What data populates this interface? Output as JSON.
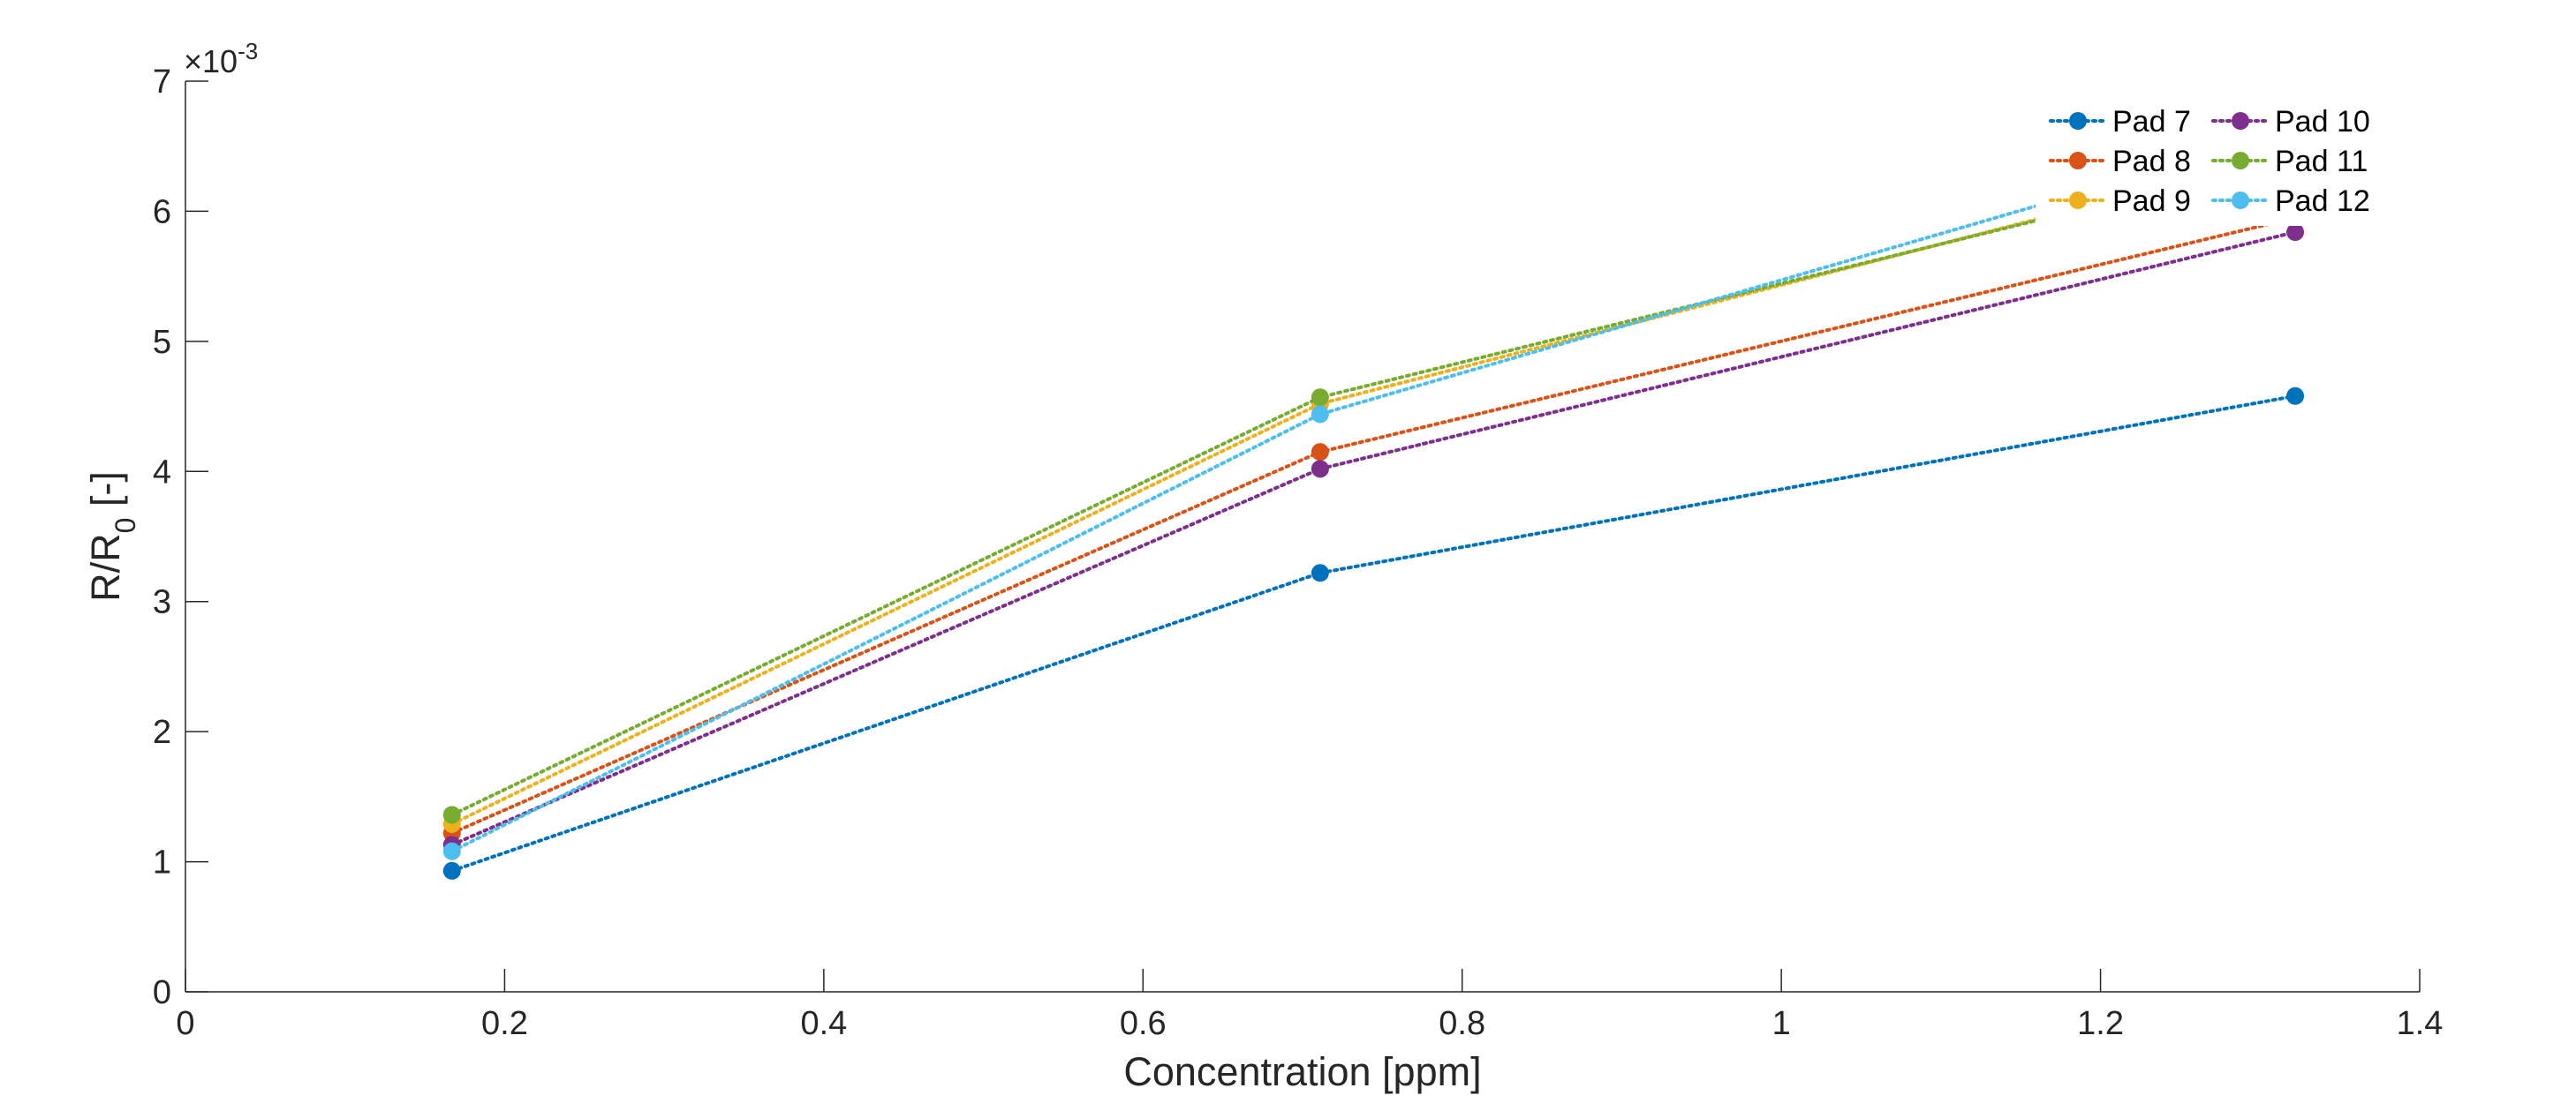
{
  "chart_data": {
    "type": "line",
    "xlabel": "Concentration [ppm]",
    "ylabel_main": "R/R",
    "ylabel_sub": "0",
    "ylabel_tail": " [-]",
    "y_exponent_prefix": "×10",
    "y_exponent_power": "-3",
    "xlim": [
      0,
      1.4
    ],
    "ylim": [
      0,
      7
    ],
    "y_multiplier": 0.001,
    "x_ticks": [
      0,
      0.2,
      0.4,
      0.6,
      0.8,
      1,
      1.2,
      1.4
    ],
    "x_tick_labels": [
      "0",
      "0.2",
      "0.4",
      "0.6",
      "0.8",
      "1",
      "1.2",
      "1.4"
    ],
    "y_ticks": [
      0,
      1,
      2,
      3,
      4,
      5,
      6,
      7
    ],
    "y_tick_labels": [
      "0",
      "1",
      "2",
      "3",
      "4",
      "5",
      "6",
      "7"
    ],
    "grid": false,
    "legend_position": "top-right",
    "legend_columns": 2,
    "x": [
      0.167,
      0.711,
      1.322
    ],
    "series": [
      {
        "name": "Pad 7",
        "color": "#0072BD",
        "values": [
          0.93,
          3.22,
          4.58
        ]
      },
      {
        "name": "Pad 8",
        "color": "#D95319",
        "values": [
          1.22,
          4.15,
          5.95
        ]
      },
      {
        "name": "Pad 9",
        "color": "#EDB120",
        "values": [
          1.29,
          4.52,
          6.45
        ]
      },
      {
        "name": "Pad 10",
        "color": "#7E2F8E",
        "values": [
          1.13,
          4.02,
          5.84
        ]
      },
      {
        "name": "Pad 11",
        "color": "#77AC30",
        "values": [
          1.36,
          4.57,
          6.42
        ]
      },
      {
        "name": "Pad 12",
        "color": "#4DBEEE",
        "values": [
          1.08,
          4.44,
          6.62
        ]
      }
    ]
  }
}
